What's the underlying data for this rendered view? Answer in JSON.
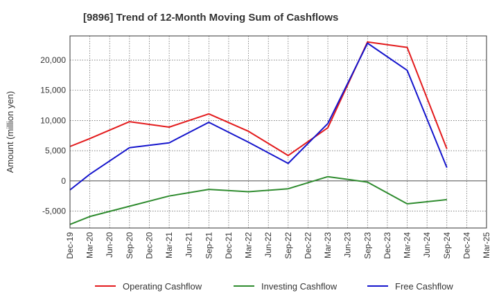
{
  "chart_data": {
    "type": "line",
    "title": "[9896]  Trend of 12-Month Moving Sum of Cashflows",
    "xlabel": "",
    "ylabel": "Amount (million yen)",
    "categories": [
      "Dec-19",
      "Mar-20",
      "Jun-20",
      "Sep-20",
      "Dec-20",
      "Mar-21",
      "Jun-21",
      "Sep-21",
      "Dec-21",
      "Mar-22",
      "Jun-22",
      "Sep-22",
      "Dec-22",
      "Mar-23",
      "Jun-23",
      "Sep-23",
      "Dec-23",
      "Mar-24",
      "Jun-24",
      "Sep-24",
      "Dec-24",
      "Mar-25"
    ],
    "ylim": [
      -7800,
      24000
    ],
    "yticks": [
      -5000,
      0,
      5000,
      10000,
      15000,
      20000
    ],
    "ytick_labels": [
      "-5,000",
      "0",
      "5,000",
      "10,000",
      "15,000",
      "20,000"
    ],
    "grid": true,
    "legend_position": "bottom",
    "series": [
      {
        "name": "Operating Cashflow",
        "color": "#e31a1c",
        "values": [
          5700,
          7000,
          null,
          9800,
          null,
          8900,
          null,
          11100,
          null,
          8200,
          null,
          4200,
          null,
          8800,
          null,
          23000,
          null,
          22100,
          null,
          5300,
          null,
          null
        ]
      },
      {
        "name": "Investing Cashflow",
        "color": "#2e8b2e",
        "values": [
          -7200,
          -5900,
          null,
          -4200,
          null,
          -2500,
          null,
          -1400,
          null,
          -1800,
          null,
          -1300,
          null,
          700,
          null,
          -200,
          null,
          -3800,
          null,
          -3100,
          null,
          null
        ]
      },
      {
        "name": "Free Cashflow",
        "color": "#1414cc",
        "values": [
          -1500,
          1100,
          null,
          5500,
          null,
          6300,
          null,
          9700,
          null,
          6400,
          null,
          2900,
          null,
          9500,
          null,
          22800,
          null,
          18300,
          null,
          2200,
          null,
          null
        ]
      }
    ]
  }
}
